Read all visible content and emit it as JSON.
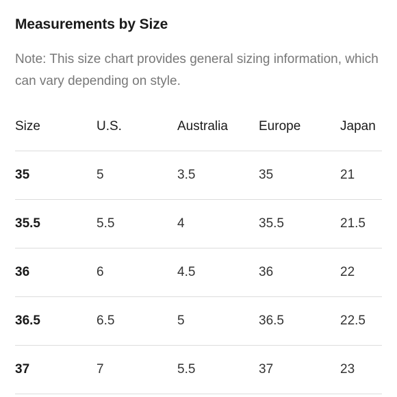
{
  "header": {
    "title": "Measurements by Size",
    "note": "Note: This size chart provides general sizing information, which can vary depending on style."
  },
  "table": {
    "columns": [
      "Size",
      "U.S.",
      "Australia",
      "Europe",
      "Japan"
    ],
    "rows": [
      [
        "35",
        "5",
        "3.5",
        "35",
        "21"
      ],
      [
        "35.5",
        "5.5",
        "4",
        "35.5",
        "21.5"
      ],
      [
        "36",
        "6",
        "4.5",
        "36",
        "22"
      ],
      [
        "36.5",
        "6.5",
        "5",
        "36.5",
        "22.5"
      ],
      [
        "37",
        "7",
        "5.5",
        "37",
        "23"
      ]
    ]
  }
}
